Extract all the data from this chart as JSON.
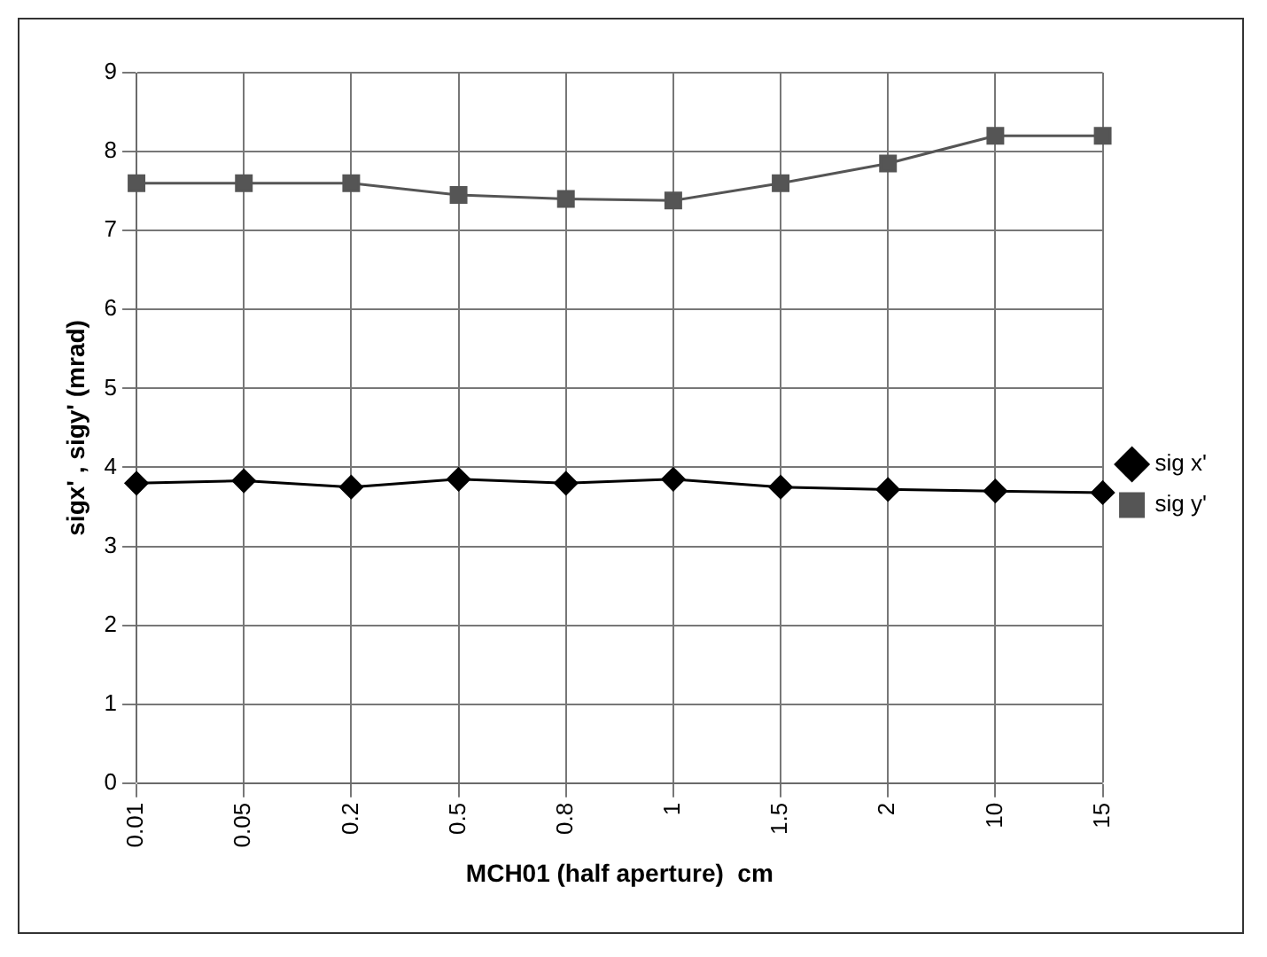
{
  "chart_data": {
    "type": "line",
    "xlabel": "MCH01 (half aperture)  cm",
    "ylabel": "sigx' , sigy' (mrad)",
    "categories": [
      "0.01",
      "0.05",
      "0.2",
      "0.5",
      "0.8",
      "1",
      "1.5",
      "2",
      "10",
      "15"
    ],
    "series": [
      {
        "name": "sig x'",
        "color": "#000000",
        "marker": "diamond",
        "values": [
          3.8,
          3.83,
          3.75,
          3.85,
          3.8,
          3.85,
          3.75,
          3.72,
          3.7,
          3.68
        ]
      },
      {
        "name": "sig y'",
        "color": "#555555",
        "marker": "square",
        "values": [
          7.6,
          7.6,
          7.6,
          7.45,
          7.4,
          7.38,
          7.6,
          7.85,
          8.2,
          8.2
        ]
      }
    ],
    "ylim": [
      0,
      9
    ],
    "yticks": [
      0,
      1,
      2,
      3,
      4,
      5,
      6,
      7,
      8,
      9
    ],
    "grid": true,
    "legend": "right"
  }
}
